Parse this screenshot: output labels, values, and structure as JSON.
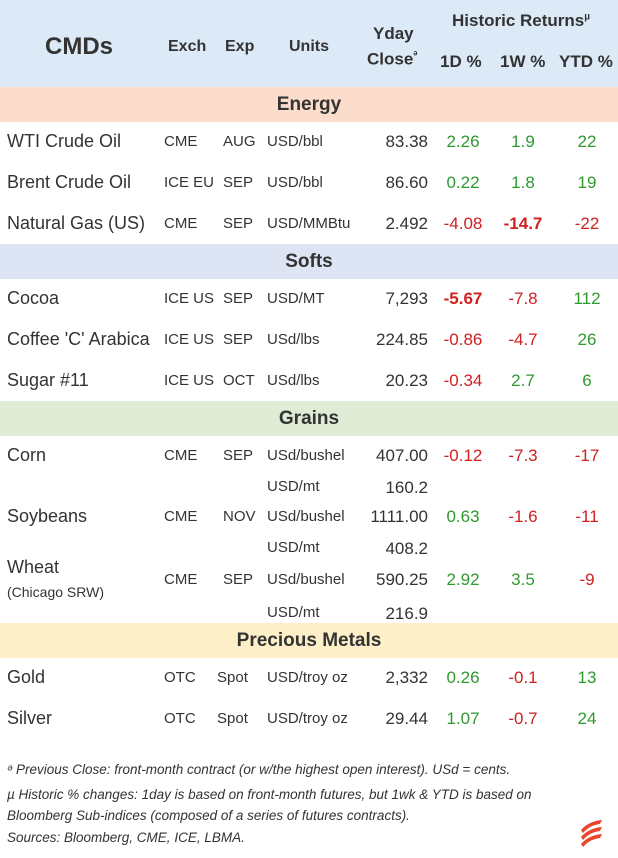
{
  "header": {
    "title": "CMDs",
    "exch": "Exch",
    "exp": "Exp",
    "units": "Units",
    "yday_line1": "Yday",
    "yday_line2": "Close",
    "yday_mark": "ᵊ",
    "historic": "Historic Returns",
    "historic_mark": "µ",
    "d1": "1D %",
    "w1": "1W %",
    "ytd": "YTD %"
  },
  "sections": {
    "energy": {
      "label": "Energy",
      "color": "#fcdccb"
    },
    "softs": {
      "label": "Softs",
      "color": "#dde4f3"
    },
    "grains": {
      "label": "Grains",
      "color": "#e0ecd5"
    },
    "metals": {
      "label": "Precious Metals",
      "color": "#fdf0c8"
    }
  },
  "energy": [
    {
      "name": "WTI Crude Oil",
      "exch": "CME",
      "exp": "AUG",
      "units": "USD/bbl",
      "close": "83.38",
      "d1": "2.26",
      "w1": "1.9",
      "ytd": "22"
    },
    {
      "name": "Brent Crude Oil",
      "exch": "ICE EU",
      "exp": "SEP",
      "units": "USD/bbl",
      "close": "86.60",
      "d1": "0.22",
      "w1": "1.8",
      "ytd": "19"
    },
    {
      "name": "Natural Gas (US)",
      "exch": "CME",
      "exp": "SEP",
      "units": "USD/MMBtu",
      "close": "2.492",
      "d1": "-4.08",
      "w1": "-14.7",
      "ytd": "-22"
    }
  ],
  "softs": [
    {
      "name": "Cocoa",
      "exch": "ICE US",
      "exp": "SEP",
      "units": "USD/MT",
      "close": "7,293",
      "d1": "-5.67",
      "w1": "-7.8",
      "ytd": "112"
    },
    {
      "name": "Coffee 'C' Arabica",
      "exch": "ICE US",
      "exp": "SEP",
      "units": "USd/lbs",
      "close": "224.85",
      "d1": "-0.86",
      "w1": "-4.7",
      "ytd": "26"
    },
    {
      "name": "Sugar #11",
      "exch": "ICE US",
      "exp": "OCT",
      "units": "USd/lbs",
      "close": "20.23",
      "d1": "-0.34",
      "w1": "2.7",
      "ytd": "6"
    }
  ],
  "grains": [
    {
      "name": "Corn",
      "exch": "CME",
      "exp": "SEP",
      "units": "USd/bushel",
      "close": "407.00",
      "d1": "-0.12",
      "w1": "-7.3",
      "ytd": "-17",
      "alt_units": "USD/mt",
      "alt_close": "160.2"
    },
    {
      "name": "Soybeans",
      "exch": "CME",
      "exp": "NOV",
      "units": "USd/bushel",
      "close": "1111.00",
      "d1": "0.63",
      "w1": "-1.6",
      "ytd": "-11",
      "alt_units": "USD/mt",
      "alt_close": "408.2"
    },
    {
      "name": "Wheat",
      "sub": "(Chicago SRW)",
      "exch": "CME",
      "exp": "SEP",
      "units": "USd/bushel",
      "close": "590.25",
      "d1": "2.92",
      "w1": "3.5",
      "ytd": "-9",
      "alt_units": "USD/mt",
      "alt_close": "216.9"
    }
  ],
  "metals": [
    {
      "name": "Gold",
      "exch": "OTC",
      "exp": "Spot",
      "units": "USD/troy oz",
      "close": "2,332",
      "d1": "0.26",
      "w1": "-0.1",
      "ytd": "13"
    },
    {
      "name": "Silver",
      "exch": "OTC",
      "exp": "Spot",
      "units": "USD/troy oz",
      "close": "29.44",
      "d1": "1.07",
      "w1": "-0.7",
      "ytd": "24"
    }
  ],
  "footnotes": {
    "line1": "ᵊ Previous Close: front-month contract (or w/the highest open interest). USd = cents.",
    "line2": "µ Historic % changes: 1day is based on front-month futures, but 1wk & YTD is based on",
    "line3": "Bloomberg Sub-indices (composed of a series of futures contracts).",
    "line4": "Sources: Bloomberg, CME, ICE, LBMA."
  },
  "colors": {
    "positive": "#2e9a2e",
    "negative": "#d02020",
    "header_bg": "#dce9f6",
    "logo": "#e8452c"
  },
  "logo_icon": "flame-stripes-icon"
}
